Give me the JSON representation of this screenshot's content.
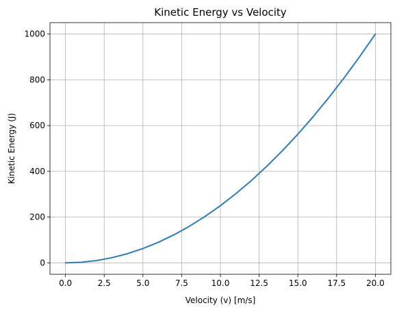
{
  "chart_data": {
    "type": "line",
    "title": "Kinetic Energy vs Velocity",
    "xlabel": "Velocity (v) [m/s]",
    "ylabel": "Kinetic Energy (J)",
    "xlim": [
      -1,
      21
    ],
    "ylim": [
      -50,
      1050
    ],
    "xticks": [
      0.0,
      2.5,
      5.0,
      7.5,
      10.0,
      12.5,
      15.0,
      17.5,
      20.0
    ],
    "xtick_labels": [
      "0.0",
      "2.5",
      "5.0",
      "7.5",
      "10.0",
      "12.5",
      "15.0",
      "17.5",
      "20.0"
    ],
    "yticks": [
      0,
      200,
      400,
      600,
      800,
      1000
    ],
    "ytick_labels": [
      "0",
      "200",
      "400",
      "600",
      "800",
      "1000"
    ],
    "grid": true,
    "series": [
      {
        "color": "#2c7bb6",
        "x": [
          0,
          1,
          2,
          3,
          4,
          5,
          6,
          7,
          8,
          9,
          10,
          11,
          12,
          13,
          14,
          15,
          16,
          17,
          18,
          19,
          20
        ],
        "y": [
          0,
          2.5,
          10,
          22.5,
          40,
          62.5,
          90,
          122.5,
          160,
          202.5,
          250,
          302.5,
          360,
          422.5,
          490,
          562.5,
          640,
          722.5,
          810,
          902.5,
          1000
        ]
      }
    ]
  }
}
